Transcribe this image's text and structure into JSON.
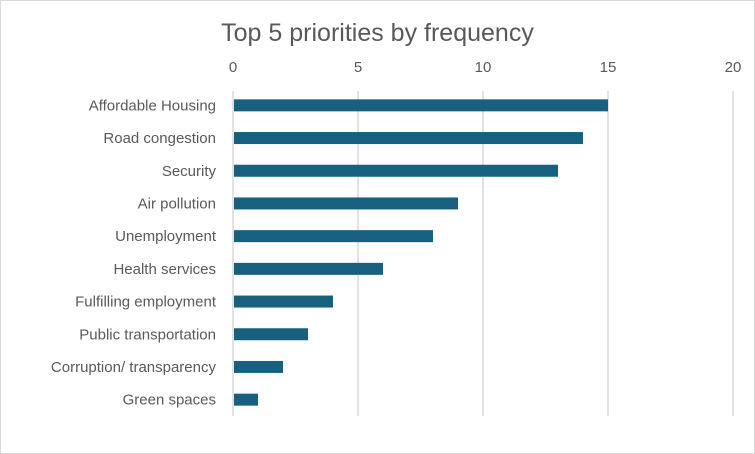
{
  "chart_data": {
    "type": "bar",
    "orientation": "horizontal",
    "title": "Top 5 priorities by frequency",
    "categories": [
      "Affordable Housing",
      "Road congestion",
      "Security",
      "Air pollution",
      "Unemployment",
      "Health services",
      "Fulfilling employment",
      "Public transportation",
      "Corruption/ transparency",
      "Green spaces"
    ],
    "values": [
      15,
      14,
      13,
      9,
      8,
      6,
      4,
      3,
      2,
      1
    ],
    "xlim": [
      0,
      20
    ],
    "xticks": [
      0,
      5,
      10,
      15,
      20
    ],
    "xaxis_position": "top",
    "grid": true,
    "bar_color": "#17607f",
    "xlabel": "",
    "ylabel": ""
  }
}
